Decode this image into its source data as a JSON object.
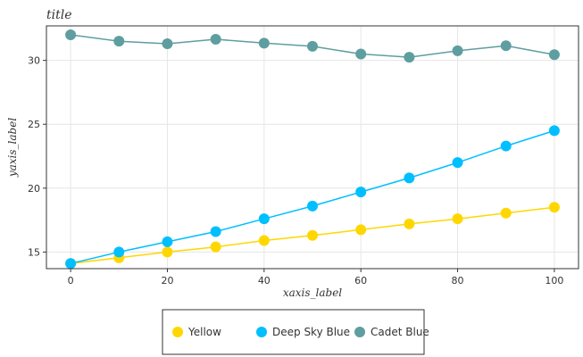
{
  "chart_data": {
    "type": "line",
    "title": "title",
    "xlabel": "xaxis_label",
    "ylabel": "yaxis_label",
    "xlim": [
      -5,
      105
    ],
    "ylim": [
      13.7,
      32.7
    ],
    "x_ticks": [
      0,
      20,
      40,
      60,
      80,
      100
    ],
    "y_ticks": [
      15,
      20,
      25,
      30
    ],
    "grid": true,
    "legend_position": "bottom",
    "series": [
      {
        "name": "Yellow",
        "color": "#FFD700",
        "x": [
          0,
          10,
          20,
          30,
          40,
          50,
          60,
          70,
          80,
          90,
          100
        ],
        "values": [
          14.1,
          14.55,
          15.0,
          15.4,
          15.9,
          16.3,
          16.75,
          17.2,
          17.6,
          18.05,
          18.5
        ]
      },
      {
        "name": "Deep Sky Blue",
        "color": "#00BFFF",
        "x": [
          0,
          10,
          20,
          30,
          40,
          50,
          60,
          70,
          80,
          90,
          100
        ],
        "values": [
          14.1,
          15.0,
          15.8,
          16.6,
          17.6,
          18.6,
          19.7,
          20.8,
          22.0,
          23.3,
          24.5
        ]
      },
      {
        "name": "Cadet Blue",
        "color": "#5F9EA0",
        "x": [
          0,
          10,
          20,
          30,
          40,
          50,
          60,
          70,
          80,
          90,
          100
        ],
        "values": [
          32.0,
          31.5,
          31.3,
          31.65,
          31.35,
          31.1,
          30.5,
          30.25,
          30.75,
          31.15,
          30.45
        ]
      }
    ]
  }
}
